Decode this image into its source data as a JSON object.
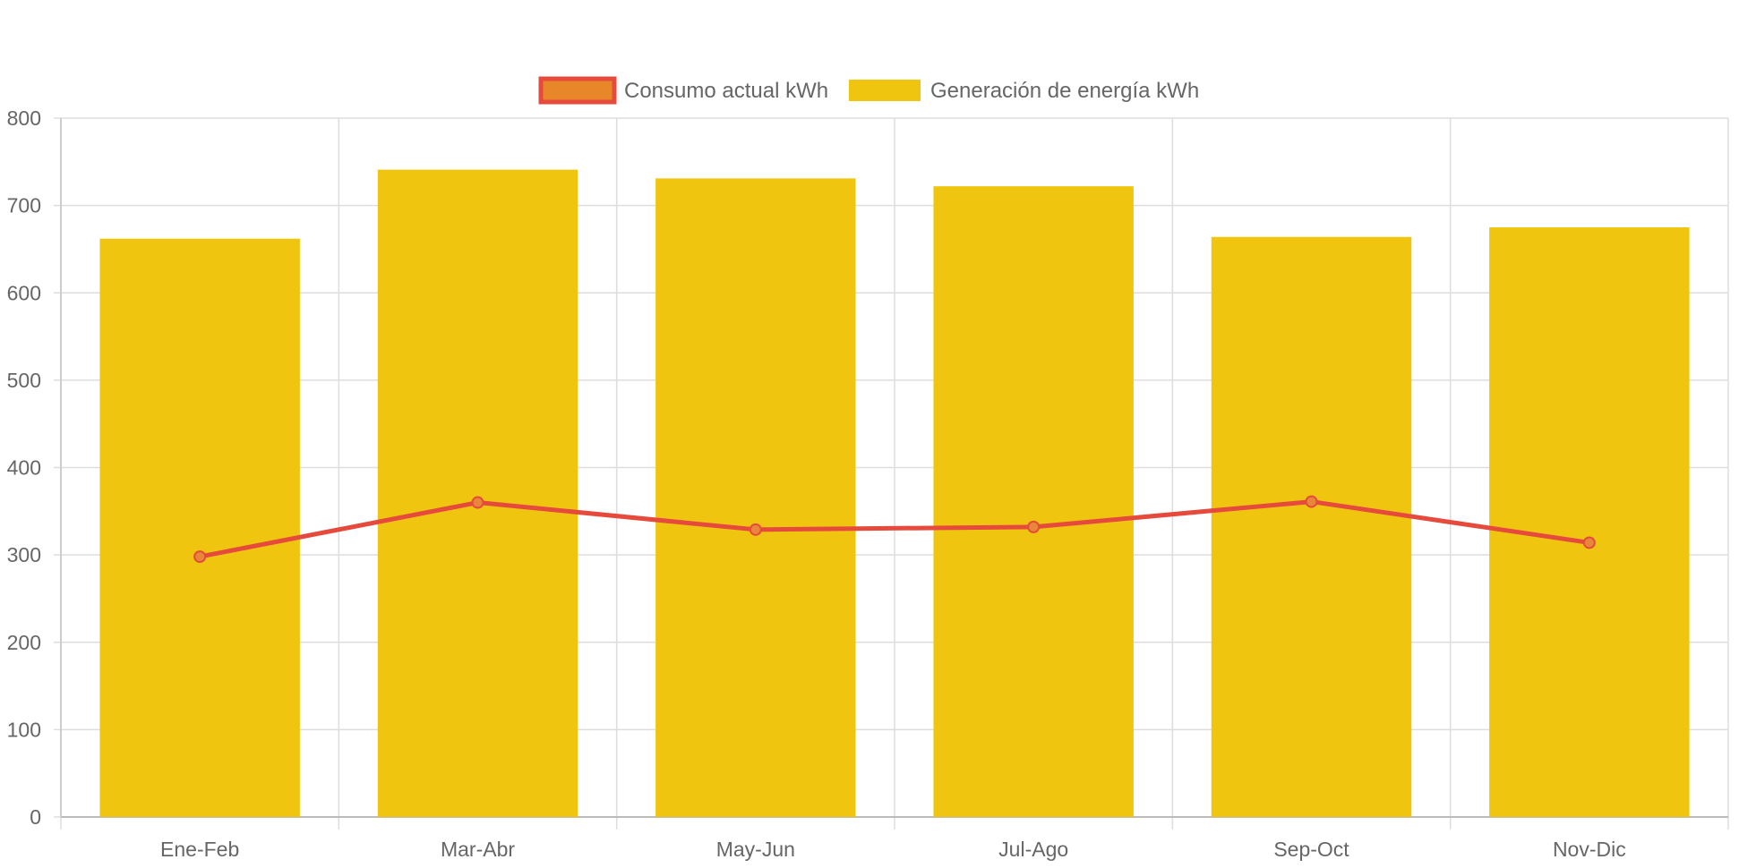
{
  "colors": {
    "bar_fill": "#F0C510",
    "line_stroke": "#E64A3C",
    "point_fill": "#E8873A",
    "legend_line_fill": "#E8872A",
    "grid": "#DDDDDD",
    "axis_text": "#666666"
  },
  "chart_data": {
    "type": "bar",
    "categories": [
      "Ene-Feb",
      "Mar-Abr",
      "May-Jun",
      "Jul-Ago",
      "Sep-Oct",
      "Nov-Dic"
    ],
    "series": [
      {
        "name": "Consumo actual kWh",
        "type": "line",
        "values": [
          298,
          360,
          329,
          332,
          361,
          314
        ]
      },
      {
        "name": "Generación de energía kWh",
        "type": "bar",
        "values": [
          662,
          741,
          731,
          722,
          664,
          675
        ]
      }
    ],
    "legend_order": [
      0,
      1
    ],
    "yticks": [
      0,
      100,
      200,
      300,
      400,
      500,
      600,
      700,
      800
    ],
    "ylim": [
      0,
      800
    ],
    "grid": true,
    "legend_position": "top-center",
    "title": "",
    "xlabel": "",
    "ylabel": ""
  }
}
